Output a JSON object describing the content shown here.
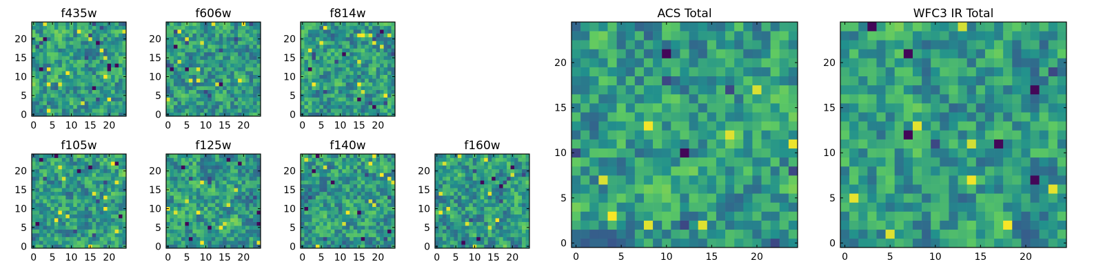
{
  "figure": {
    "colormap": "viridis",
    "colormap_stops": [
      "#440154",
      "#3b528b",
      "#21908d",
      "#5dc963",
      "#fde725"
    ],
    "frame_color": "#000000",
    "background": "#ffffff"
  },
  "chart_data": [
    {
      "type": "heatmap",
      "title": "f435w",
      "grid": [
        25,
        25
      ],
      "xlim": [
        -0.5,
        24.5
      ],
      "ylim": [
        -0.5,
        24.5
      ],
      "xticks": [
        "0",
        "5",
        "10",
        "15",
        "20"
      ],
      "yticks": [
        "0",
        "5",
        "10",
        "15",
        "20"
      ],
      "seed": 11,
      "dark_cells": 14
    },
    {
      "type": "heatmap",
      "title": "f606w",
      "grid": [
        25,
        25
      ],
      "xlim": [
        -0.5,
        24.5
      ],
      "ylim": [
        -0.5,
        24.5
      ],
      "xticks": [
        "0",
        "5",
        "10",
        "15",
        "20"
      ],
      "yticks": [
        "0",
        "5",
        "10",
        "15",
        "20"
      ],
      "seed": 23,
      "dark_cells": 12
    },
    {
      "type": "heatmap",
      "title": "f814w",
      "grid": [
        25,
        25
      ],
      "xlim": [
        -0.5,
        24.5
      ],
      "ylim": [
        -0.5,
        24.5
      ],
      "xticks": [
        "0",
        "5",
        "10",
        "15",
        "20"
      ],
      "yticks": [
        "0",
        "5",
        "10",
        "15",
        "20"
      ],
      "seed": 37,
      "dark_cells": 14
    },
    {
      "type": "heatmap",
      "title": "f105w",
      "grid": [
        25,
        25
      ],
      "xlim": [
        -0.5,
        24.5
      ],
      "ylim": [
        -0.5,
        24.5
      ],
      "xticks": [
        "0",
        "5",
        "10",
        "15",
        "20"
      ],
      "yticks": [
        "0",
        "5",
        "10",
        "15",
        "20"
      ],
      "seed": 41,
      "dark_cells": 12
    },
    {
      "type": "heatmap",
      "title": "f125w",
      "grid": [
        25,
        25
      ],
      "xlim": [
        -0.5,
        24.5
      ],
      "ylim": [
        -0.5,
        24.5
      ],
      "xticks": [
        "0",
        "5",
        "10",
        "15",
        "20"
      ],
      "yticks": [
        "0",
        "5",
        "10",
        "15",
        "20"
      ],
      "seed": 53,
      "dark_cells": 12
    },
    {
      "type": "heatmap",
      "title": "f140w",
      "grid": [
        25,
        25
      ],
      "xlim": [
        -0.5,
        24.5
      ],
      "ylim": [
        -0.5,
        24.5
      ],
      "xticks": [
        "0",
        "5",
        "10",
        "15",
        "20"
      ],
      "yticks": [
        "0",
        "5",
        "10",
        "15",
        "20"
      ],
      "seed": 67,
      "dark_cells": 12
    },
    {
      "type": "heatmap",
      "title": "f160w",
      "grid": [
        25,
        25
      ],
      "xlim": [
        -0.5,
        24.5
      ],
      "ylim": [
        -0.5,
        24.5
      ],
      "xticks": [
        "0",
        "5",
        "10",
        "15",
        "20"
      ],
      "yticks": [
        "0",
        "5",
        "10",
        "15",
        "20"
      ],
      "seed": 79,
      "dark_cells": 12
    },
    {
      "type": "heatmap",
      "title": "ACS Total",
      "grid": [
        25,
        25
      ],
      "xlim": [
        -0.5,
        24.5
      ],
      "ylim": [
        -0.5,
        24.5
      ],
      "xticks": [
        "0",
        "5",
        "10",
        "15",
        "20"
      ],
      "yticks": [
        "0",
        "5",
        "10",
        "15",
        "20"
      ],
      "seed": 97,
      "dark_cells": 8
    },
    {
      "type": "heatmap",
      "title": "WFC3 IR Total",
      "grid": [
        25,
        25
      ],
      "xlim": [
        -0.5,
        24.5
      ],
      "ylim": [
        -0.5,
        24.5
      ],
      "xticks": [
        "0",
        "5",
        "10",
        "15",
        "20"
      ],
      "yticks": [
        "0",
        "5",
        "10",
        "15",
        "20"
      ],
      "seed": 131,
      "dark_cells": 8
    }
  ]
}
